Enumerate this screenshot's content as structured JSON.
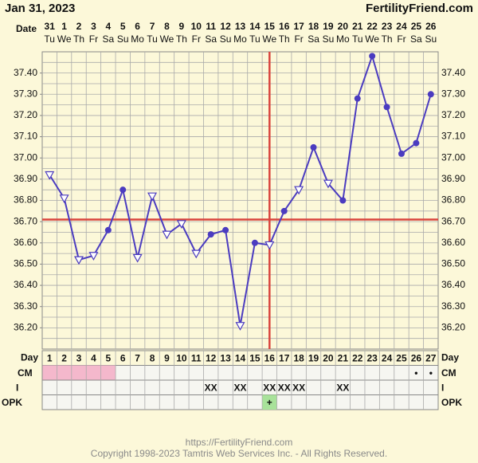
{
  "chart_data": {
    "type": "line",
    "title": "Jan 31, 2023",
    "site": "FertilityFriend.com",
    "date_label": "Date",
    "dates": [
      31,
      1,
      2,
      3,
      4,
      5,
      6,
      7,
      8,
      9,
      10,
      11,
      12,
      13,
      14,
      15,
      16,
      17,
      18,
      19,
      20,
      21,
      22,
      23,
      24,
      25,
      26
    ],
    "weekdays": [
      "Tu",
      "We",
      "Th",
      "Fr",
      "Sa",
      "Su",
      "Mo",
      "Tu",
      "We",
      "Th",
      "Fr",
      "Sa",
      "Su",
      "Mo",
      "Tu",
      "We",
      "Th",
      "Fr",
      "Sa",
      "Su",
      "Mo",
      "Tu",
      "We",
      "Th",
      "Fr",
      "Sa",
      "Su"
    ],
    "days": [
      1,
      2,
      3,
      4,
      5,
      6,
      7,
      8,
      9,
      10,
      11,
      12,
      13,
      14,
      15,
      16,
      17,
      18,
      19,
      20,
      21,
      22,
      23,
      24,
      25,
      26,
      27
    ],
    "series": [
      {
        "color": "#4b3cc0",
        "values": [
          36.92,
          36.81,
          36.52,
          36.54,
          36.66,
          36.85,
          36.53,
          36.82,
          36.64,
          36.69,
          36.55,
          36.64,
          36.66,
          36.21,
          36.6,
          36.59,
          36.75,
          36.85,
          37.05,
          36.88,
          36.8,
          37.28,
          37.48,
          37.24,
          37.02,
          37.07,
          37.3
        ],
        "markers": [
          "triangle",
          "triangle",
          "triangle",
          "triangle",
          "dot",
          "dot",
          "triangle",
          "triangle",
          "triangle",
          "triangle",
          "triangle",
          "dot",
          "dot",
          "triangle",
          "dot",
          "triangle",
          "dot",
          "triangle",
          "dot",
          "triangle",
          "dot",
          "dot",
          "dot",
          "dot",
          "dot",
          "dot",
          "dot"
        ]
      }
    ],
    "ylim": [
      36.1,
      37.5
    ],
    "yticks": [
      {
        "value": 36.2,
        "label": "36.20"
      },
      {
        "value": 36.3,
        "label": "36.30"
      },
      {
        "value": 36.4,
        "label": "36.40"
      },
      {
        "value": 36.5,
        "label": "36.50"
      },
      {
        "value": 36.6,
        "label": "36.60"
      },
      {
        "value": 36.7,
        "label": "36.70"
      },
      {
        "value": 36.8,
        "label": "36.80"
      },
      {
        "value": 36.9,
        "label": "36.90"
      },
      {
        "value": 37.0,
        "label": "37.00"
      },
      {
        "value": 37.1,
        "label": "37.10"
      },
      {
        "value": 37.2,
        "label": "37.20"
      },
      {
        "value": 37.3,
        "label": "37.30"
      },
      {
        "value": 37.4,
        "label": "37.40"
      }
    ],
    "grid_step": 0.05,
    "coverline": 36.71,
    "ovulation_day": 16,
    "marker_line_color": "#d9453e",
    "table": {
      "day_label": "Day",
      "rows": [
        {
          "label": "CM",
          "cells": [
            null,
            null,
            null,
            null,
            null,
            null,
            null,
            null,
            null,
            null,
            null,
            null,
            null,
            null,
            null,
            null,
            null,
            null,
            null,
            null,
            null,
            null,
            null,
            null,
            null,
            "•",
            "•"
          ],
          "highlight": [
            1,
            2,
            3,
            4,
            5
          ],
          "highlight_color": "#f4b8cc"
        },
        {
          "label": "I",
          "cells": [
            null,
            null,
            null,
            null,
            null,
            null,
            null,
            null,
            null,
            null,
            null,
            "XX",
            null,
            "XX",
            null,
            "XX",
            "XX",
            "XX",
            null,
            null,
            "XX",
            null,
            null,
            null,
            null,
            null,
            null
          ],
          "highlight": [],
          "highlight_color": "#ffffff"
        },
        {
          "label": "OPK",
          "cells": [
            null,
            null,
            null,
            null,
            null,
            null,
            null,
            null,
            null,
            null,
            null,
            null,
            null,
            null,
            null,
            "+",
            null,
            null,
            null,
            null,
            null,
            null,
            null,
            null,
            null,
            null,
            null
          ],
          "highlight": [
            16
          ],
          "highlight_color": "#a8e29a"
        }
      ]
    },
    "footer": [
      "https://FertilityFriend.com",
      "Copyright 1998-2023 Tamtris Web Services Inc. - All Rights Reserved."
    ]
  }
}
